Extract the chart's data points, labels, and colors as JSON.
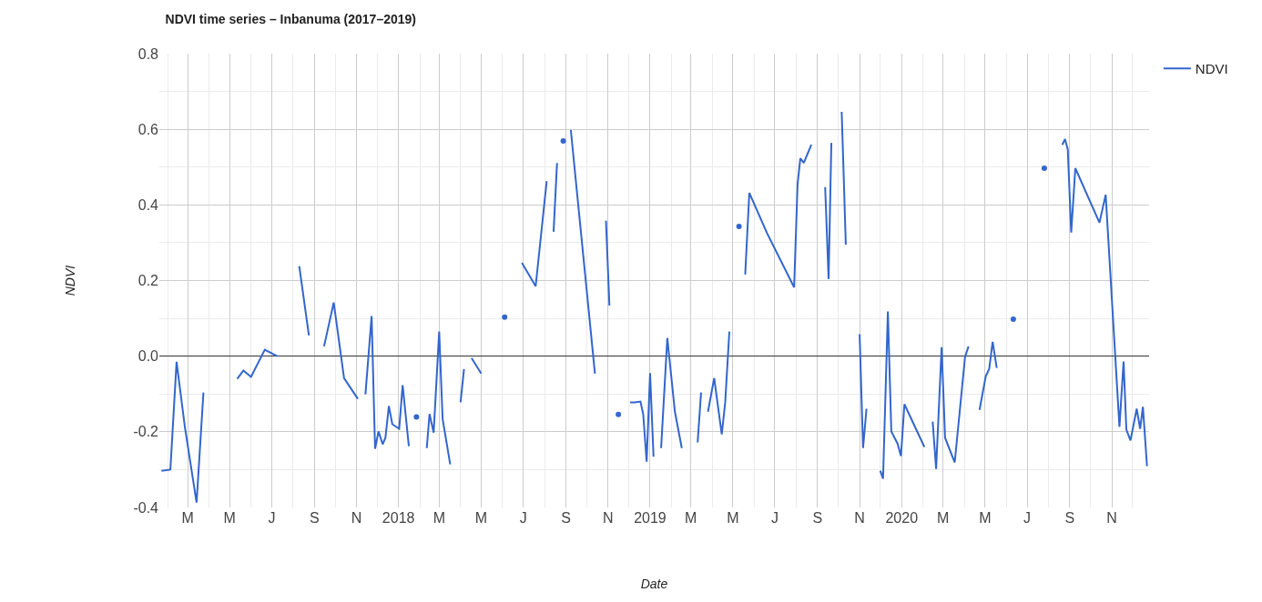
{
  "chart_data": {
    "type": "line",
    "title": "NDVI time series – Inbanuma (2017–2019)",
    "xlabel": "Date",
    "ylabel": "NDVI",
    "xlim": [
      "2017-01-19",
      "2020-12-25"
    ],
    "xticks": [
      {
        "value": "2017-03-01",
        "label": "M"
      },
      {
        "value": "2017-05-01",
        "label": "M"
      },
      {
        "value": "2017-07-01",
        "label": "J"
      },
      {
        "value": "2017-09-01",
        "label": "S"
      },
      {
        "value": "2017-11-01",
        "label": "N"
      },
      {
        "value": "2018-01-01",
        "label": "2018"
      },
      {
        "value": "2018-03-01",
        "label": "M"
      },
      {
        "value": "2018-05-01",
        "label": "M"
      },
      {
        "value": "2018-07-01",
        "label": "J"
      },
      {
        "value": "2018-09-01",
        "label": "S"
      },
      {
        "value": "2018-11-01",
        "label": "N"
      },
      {
        "value": "2019-01-01",
        "label": "2019"
      },
      {
        "value": "2019-03-01",
        "label": "M"
      },
      {
        "value": "2019-05-01",
        "label": "M"
      },
      {
        "value": "2019-07-01",
        "label": "J"
      },
      {
        "value": "2019-09-01",
        "label": "S"
      },
      {
        "value": "2019-11-01",
        "label": "N"
      },
      {
        "value": "2020-01-01",
        "label": "2020"
      },
      {
        "value": "2020-03-01",
        "label": "M"
      },
      {
        "value": "2020-05-01",
        "label": "M"
      },
      {
        "value": "2020-07-01",
        "label": "J"
      },
      {
        "value": "2020-09-01",
        "label": "S"
      },
      {
        "value": "2020-11-01",
        "label": "N"
      }
    ],
    "ylim": [
      -0.4,
      0.8
    ],
    "yticks": [
      {
        "value": -0.4,
        "label": "-0.4"
      },
      {
        "value": -0.2,
        "label": "-0.2"
      },
      {
        "value": 0,
        "label": "0.0"
      },
      {
        "value": 0.2,
        "label": "0.2"
      },
      {
        "value": 0.4,
        "label": "0.4"
      },
      {
        "value": 0.6,
        "label": "0.6"
      },
      {
        "value": 0.8,
        "label": "0.8"
      }
    ],
    "grid": true,
    "legend": "top right",
    "line_style": "solid",
    "series": [
      {
        "name": "NDVI",
        "color": "#3366cc",
        "x": [
          "2017-01-22",
          "2017-02-04",
          "2017-02-13",
          "2017-02-25",
          "2017-03-14",
          "2017-03-24",
          null,
          "2017-05-12",
          "2017-05-21",
          "2017-06-01",
          "2017-06-21",
          "2017-07-09",
          null,
          "2017-08-10",
          "2017-08-24",
          null,
          "2017-09-15",
          "2017-09-29",
          "2017-10-14",
          "2017-11-03",
          null,
          "2017-11-14",
          "2017-11-23",
          "2017-11-28",
          "2017-12-03",
          "2017-12-09",
          "2017-12-13",
          "2017-12-18",
          "2017-12-23",
          "2018-01-02",
          "2018-01-07",
          "2018-01-16",
          null,
          "2018-01-27",
          null,
          "2018-02-11",
          "2018-02-15",
          "2018-02-21",
          "2018-03-01",
          "2018-03-06",
          "2018-03-17",
          null,
          "2018-04-01",
          "2018-04-06",
          null,
          "2018-04-17",
          "2018-05-01",
          null,
          "2018-06-04",
          null,
          "2018-06-29",
          "2018-07-19",
          "2018-08-04",
          null,
          "2018-08-14",
          "2018-08-19",
          null,
          "2018-08-28",
          null,
          "2018-09-08",
          "2018-10-13",
          null,
          "2018-10-29",
          "2018-11-03",
          null,
          "2018-11-16",
          null,
          "2018-12-03",
          "2018-12-10",
          "2018-12-18",
          "2018-12-22",
          "2018-12-27",
          "2019-01-01",
          "2019-01-06",
          null,
          "2019-01-17",
          "2019-01-26",
          "2019-02-06",
          "2019-02-16",
          null,
          "2019-03-11",
          "2019-03-16",
          null,
          "2019-03-26",
          "2019-04-04",
          "2019-04-15",
          "2019-04-20",
          "2019-04-26",
          null,
          "2019-05-10",
          null,
          "2019-05-19",
          "2019-05-25",
          "2019-06-20",
          "2019-07-29",
          "2019-08-03",
          "2019-08-07",
          "2019-08-12",
          "2019-08-23",
          null,
          "2019-09-12",
          "2019-09-17",
          "2019-09-21",
          null,
          "2019-10-06",
          "2019-10-12",
          null,
          "2019-11-01",
          "2019-11-06",
          "2019-11-11",
          null,
          "2019-12-01",
          "2019-12-05",
          "2019-12-12",
          "2019-12-17",
          "2019-12-26",
          "2019-12-31",
          "2020-01-05",
          "2020-02-03",
          null,
          "2020-02-15",
          "2020-02-20",
          "2020-02-28",
          "2020-03-04",
          "2020-03-18",
          "2020-04-02",
          "2020-04-07",
          null,
          "2020-04-23",
          "2020-05-02",
          "2020-05-07",
          "2020-05-12",
          "2020-05-18",
          null,
          "2020-06-11",
          null,
          "2020-07-26",
          null,
          "2020-08-21",
          "2020-08-25",
          "2020-08-29",
          "2020-09-03",
          "2020-09-09",
          "2020-10-14",
          "2020-10-23",
          "2020-11-12",
          "2020-11-18",
          "2020-11-22",
          "2020-11-28",
          "2020-12-07",
          "2020-12-12",
          "2020-12-16",
          "2020-12-22"
        ],
        "values": [
          -0.303,
          -0.3,
          -0.015,
          -0.187,
          -0.387,
          -0.096,
          null,
          -0.06,
          -0.038,
          -0.055,
          0.017,
          0.0,
          null,
          0.238,
          0.055,
          null,
          0.026,
          0.142,
          -0.058,
          -0.113,
          null,
          -0.101,
          0.106,
          -0.245,
          -0.199,
          -0.233,
          -0.216,
          -0.132,
          -0.18,
          -0.192,
          -0.077,
          -0.238,
          null,
          -0.161,
          null,
          -0.243,
          -0.153,
          -0.202,
          0.065,
          -0.166,
          -0.286,
          null,
          -0.122,
          -0.034,
          null,
          -0.005,
          -0.046,
          null,
          0.103,
          null,
          0.247,
          0.185,
          0.463,
          null,
          0.329,
          0.511,
          null,
          0.569,
          null,
          0.598,
          -0.046,
          null,
          0.358,
          0.134,
          null,
          -0.154,
          null,
          -0.122,
          -0.122,
          -0.12,
          -0.153,
          -0.279,
          -0.045,
          -0.266,
          null,
          -0.243,
          0.048,
          -0.147,
          -0.243,
          null,
          -0.228,
          -0.096,
          null,
          -0.147,
          -0.058,
          -0.207,
          -0.122,
          0.065,
          null,
          0.343,
          null,
          0.216,
          0.432,
          0.324,
          0.182,
          0.456,
          0.523,
          0.511,
          0.559,
          null,
          0.447,
          0.204,
          0.564,
          null,
          0.646,
          0.295,
          null,
          0.058,
          -0.243,
          -0.139,
          null,
          -0.303,
          -0.324,
          0.118,
          -0.199,
          -0.231,
          -0.264,
          -0.127,
          -0.24,
          null,
          -0.173,
          -0.298,
          0.024,
          -0.216,
          -0.281,
          -0.002,
          0.026,
          null,
          -0.142,
          -0.053,
          -0.034,
          0.038,
          -0.031,
          null,
          0.098,
          null,
          0.497,
          null,
          0.559,
          0.574,
          0.547,
          0.327,
          0.497,
          0.353,
          0.427,
          -0.187,
          -0.014,
          -0.194,
          -0.223,
          -0.139,
          -0.192,
          -0.134,
          -0.291
        ]
      }
    ]
  }
}
